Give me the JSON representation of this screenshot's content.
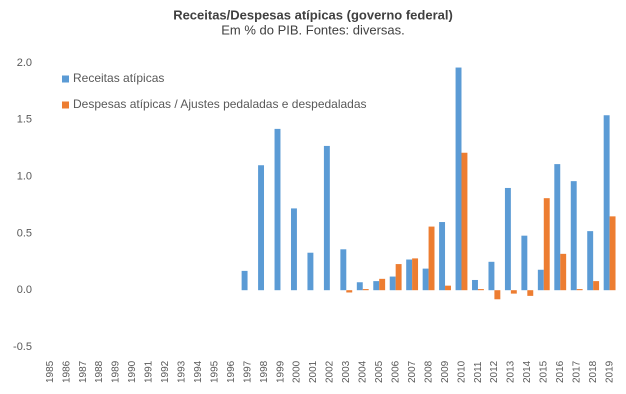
{
  "chart_data": {
    "type": "bar",
    "title": "Receitas/Despesas atípicas (governo federal)",
    "subtitle": "Em % do PIB. Fontes: diversas.",
    "categories": [
      "1985",
      "1986",
      "1987",
      "1988",
      "1989",
      "1990",
      "1991",
      "1992",
      "1993",
      "1994",
      "1995",
      "1996",
      "1997",
      "1998",
      "1999",
      "2000",
      "2001",
      "2002",
      "2003",
      "2004",
      "2005",
      "2006",
      "2007",
      "2008",
      "2009",
      "2010",
      "2011",
      "2012",
      "2013",
      "2014",
      "2015",
      "2016",
      "2017",
      "2018",
      "2019"
    ],
    "series": [
      {
        "name": "Receitas atípicas",
        "color": "#5b9bd5",
        "values": [
          0,
          0,
          0,
          0,
          0,
          0,
          0,
          0,
          0,
          0,
          0,
          0,
          0.17,
          1.1,
          1.42,
          0.72,
          0.33,
          1.27,
          0.36,
          0.07,
          0.08,
          0.12,
          0.27,
          0.19,
          0.6,
          1.96,
          0.09,
          0.25,
          0.9,
          0.48,
          0.18,
          1.11,
          0.96,
          0.52,
          1.54
        ]
      },
      {
        "name": "Despesas atípicas / Ajustes pedaladas e despedaladas",
        "color": "#ed7d31",
        "values": [
          0,
          0,
          0,
          0,
          0,
          0,
          0,
          0,
          0,
          0,
          0,
          0,
          0,
          0,
          0,
          0,
          0,
          0,
          -0.02,
          0.01,
          0.1,
          0.23,
          0.28,
          0.56,
          0.04,
          1.21,
          0.01,
          -0.08,
          -0.03,
          -0.05,
          0.81,
          0.32,
          0.01,
          0.08,
          0.65
        ]
      }
    ],
    "ylim": [
      -0.5,
      2.0
    ],
    "yticks": [
      -0.5,
      {
        "value": 0,
        "label": "0.0"
      },
      0.5,
      {
        "value": 1,
        "label": "1.0"
      },
      1.5,
      {
        "value": 2,
        "label": "2.0"
      }
    ],
    "grid": false,
    "legend": "top-left"
  }
}
